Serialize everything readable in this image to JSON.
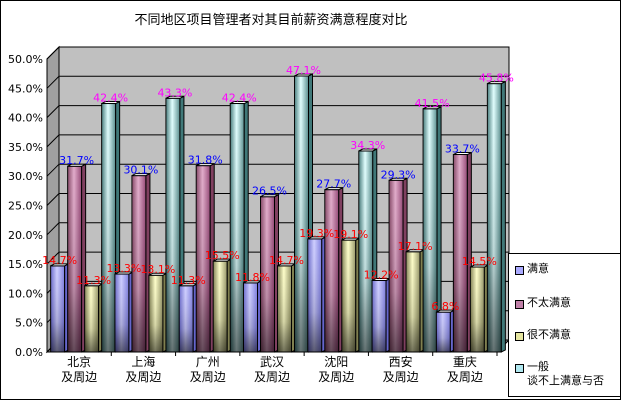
{
  "chart_data": {
    "type": "bar",
    "title": "不同地区项目管理者对其目前薪资满意程度对比",
    "categories": [
      [
        "北京",
        "及周边"
      ],
      [
        "上海",
        "及周边"
      ],
      [
        "广州",
        "及周边"
      ],
      [
        "武汉",
        "及周边"
      ],
      [
        "沈阳",
        "及周边"
      ],
      [
        "西安",
        "及周边"
      ],
      [
        "重庆",
        "及周边"
      ]
    ],
    "series": [
      {
        "name": "满意",
        "values": [
          14.7,
          13.3,
          11.3,
          11.8,
          19.3,
          12.2,
          6.8
        ],
        "labels": [
          "14.7%",
          "13.3%",
          "11.3%",
          "11.8%",
          "19.3%",
          "12.2%",
          "6.8%"
        ],
        "color": "#aaaaff",
        "label_color": "#ff0000"
      },
      {
        "name": "不太满意",
        "values": [
          31.7,
          30.1,
          31.8,
          26.5,
          27.7,
          29.3,
          33.7
        ],
        "labels": [
          "31.7%",
          "30.1%",
          "31.8%",
          "26.5%",
          "27.7%",
          "29.3%",
          "33.7%"
        ],
        "color": "#c080a8",
        "label_color": "#0000ff"
      },
      {
        "name": "很不满意",
        "values": [
          11.3,
          13.1,
          15.5,
          14.7,
          19.1,
          17.1,
          14.5
        ],
        "labels": [
          "11.3%",
          "13.1%",
          "15.5%",
          "14.7%",
          "19.1%",
          "17.1%",
          "14.5%"
        ],
        "color": "#e6e6a0",
        "label_color": "#ff0000"
      },
      {
        "name": "一般\n谈不上满意与否",
        "values": [
          42.4,
          43.3,
          42.4,
          47.1,
          34.3,
          41.5,
          45.8
        ],
        "labels": [
          "42.4%",
          "43.3%",
          "42.4%",
          "47.1%",
          "34.3%",
          "41.5%",
          "45.8%"
        ],
        "color": "#b0e8f0",
        "label_color": "#ff00ff"
      }
    ],
    "ylim": [
      0,
      50
    ],
    "yticks": [
      "0.0%",
      "5.0%",
      "10.0%",
      "15.0%",
      "20.0%",
      "25.0%",
      "30.0%",
      "35.0%",
      "40.0%",
      "45.0%",
      "50.0%"
    ],
    "grid": true,
    "legend": "right"
  }
}
